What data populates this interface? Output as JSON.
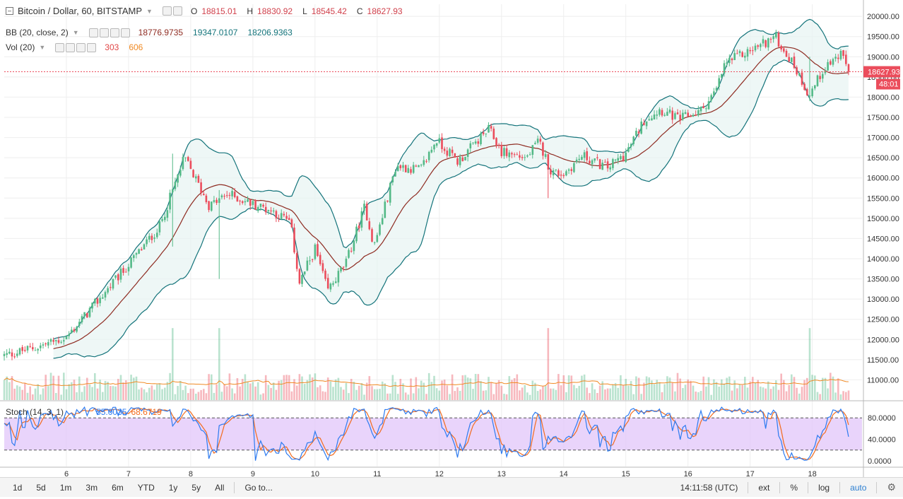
{
  "header": {
    "symbol_title": "Bitcoin / Dollar, 60, BITSTAMP",
    "ohlc": [
      {
        "label": "O",
        "value": "18815.01"
      },
      {
        "label": "H",
        "value": "18830.92"
      },
      {
        "label": "L",
        "value": "18545.42"
      },
      {
        "label": "C",
        "value": "18627.93"
      }
    ],
    "bb_label": "BB (20, close, 2)",
    "bb_values": [
      "18776.9735",
      "19347.0107",
      "18206.9363"
    ],
    "vol_label": "Vol (20)",
    "vol_values": [
      "303",
      "606"
    ],
    "stoch_label": "Stoch (14, 3, 1)",
    "stoch_values": [
      "55.0035",
      "68.6719"
    ]
  },
  "price_axis": {
    "labels": [
      "20000.00",
      "19500.00",
      "19000.00",
      "18500.00",
      "18000.00",
      "17500.00",
      "17000.00",
      "16500.00",
      "16000.00",
      "15500.00",
      "15000.00",
      "14500.00",
      "14000.00",
      "13500.00",
      "13000.00",
      "12500.00",
      "12000.00",
      "11500.00",
      "11000.00"
    ],
    "last_price": "18627.93",
    "countdown": "48:01"
  },
  "stoch_axis": {
    "labels": [
      "80.0000",
      "40.0000",
      "0.0000"
    ]
  },
  "time_axis": {
    "labels": [
      "6",
      "7",
      "8",
      "9",
      "10",
      "11",
      "12",
      "13",
      "14",
      "15",
      "16",
      "17",
      "18"
    ]
  },
  "bottom_bar": {
    "timeframes": [
      "1d",
      "5d",
      "1m",
      "3m",
      "6m",
      "YTD",
      "1y",
      "5y",
      "All"
    ],
    "goto": "Go to...",
    "clock": "14:11:58 (UTC)",
    "ext": "ext",
    "percent": "%",
    "log": "log",
    "auto": "auto"
  },
  "colors": {
    "up": "#53b987",
    "down": "#eb4d5c",
    "bb_basis": "#8e2b21",
    "bb_band": "#13737a",
    "bb_fill": "#e7f3f2",
    "vol_ma": "#f08a24",
    "stoch_k": "#2d7bf0",
    "stoch_d": "#f26b1d",
    "stoch_bg": "#e1c6fa",
    "last_price_bg": "#eb4d5c"
  },
  "chart_data": {
    "type": "candlestick",
    "instrument": "Bitcoin / Dollar",
    "interval": "60",
    "exchange": "BITSTAMP",
    "price_ylim": [
      10500,
      20300
    ],
    "x_days": [
      "6",
      "7",
      "8",
      "9",
      "10",
      "11",
      "12",
      "13",
      "14",
      "15",
      "16",
      "17",
      "18"
    ],
    "close_keypoints": [
      {
        "day": 5.0,
        "price": 11600
      },
      {
        "day": 5.5,
        "price": 11800
      },
      {
        "day": 6.0,
        "price": 12050
      },
      {
        "day": 6.5,
        "price": 12950
      },
      {
        "day": 7.0,
        "price": 13850
      },
      {
        "day": 7.5,
        "price": 14800
      },
      {
        "day": 7.9,
        "price": 16500
      },
      {
        "day": 8.3,
        "price": 15300
      },
      {
        "day": 8.6,
        "price": 15600
      },
      {
        "day": 9.0,
        "price": 15350
      },
      {
        "day": 9.3,
        "price": 15200
      },
      {
        "day": 9.6,
        "price": 14900
      },
      {
        "day": 9.75,
        "price": 13400
      },
      {
        "day": 10.0,
        "price": 14250
      },
      {
        "day": 10.2,
        "price": 13200
      },
      {
        "day": 10.5,
        "price": 13900
      },
      {
        "day": 10.8,
        "price": 15300
      },
      {
        "day": 10.95,
        "price": 14300
      },
      {
        "day": 11.3,
        "price": 16300
      },
      {
        "day": 11.7,
        "price": 16200
      },
      {
        "day": 11.95,
        "price": 16950
      },
      {
        "day": 12.3,
        "price": 16400
      },
      {
        "day": 12.6,
        "price": 16900
      },
      {
        "day": 12.8,
        "price": 17200
      },
      {
        "day": 13.0,
        "price": 16650
      },
      {
        "day": 13.4,
        "price": 16500
      },
      {
        "day": 13.6,
        "price": 16900
      },
      {
        "day": 13.8,
        "price": 16150
      },
      {
        "day": 14.0,
        "price": 16100
      },
      {
        "day": 14.3,
        "price": 16550
      },
      {
        "day": 14.7,
        "price": 16250
      },
      {
        "day": 15.0,
        "price": 16600
      },
      {
        "day": 15.3,
        "price": 17450
      },
      {
        "day": 15.55,
        "price": 17700
      },
      {
        "day": 15.85,
        "price": 17450
      },
      {
        "day": 16.2,
        "price": 17650
      },
      {
        "day": 16.45,
        "price": 18150
      },
      {
        "day": 16.6,
        "price": 18850
      },
      {
        "day": 17.0,
        "price": 19150
      },
      {
        "day": 17.4,
        "price": 19500
      },
      {
        "day": 17.7,
        "price": 18800
      },
      {
        "day": 17.95,
        "price": 18050
      },
      {
        "day": 18.2,
        "price": 18750
      },
      {
        "day": 18.45,
        "price": 19050
      },
      {
        "day": 18.6,
        "price": 18630
      }
    ],
    "annotated_spikes": [
      {
        "day": 7.7,
        "low": 14300,
        "high": 16600
      },
      {
        "day": 8.45,
        "low": 13500,
        "high": 15700
      },
      {
        "day": 13.75,
        "low": 15500,
        "high": 16400
      },
      {
        "day": 17.95,
        "low": 17900,
        "high": 19000
      }
    ],
    "volume_ylim": [
      0,
      2600
    ],
    "stoch_ylim": [
      0,
      100
    ],
    "stoch_levels": [
      80,
      20
    ]
  }
}
